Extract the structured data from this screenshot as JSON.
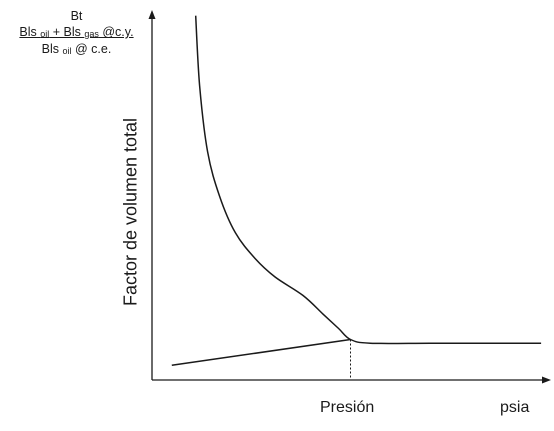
{
  "colors": {
    "line": "#1a1a1a",
    "axis": "#1a1a1a",
    "background": "#ffffff"
  },
  "units": {
    "title": "Bt",
    "numerator": {
      "a": "Bls ",
      "a_sub": "oil",
      "b": " + Bls ",
      "b_sub": "gas",
      "c": " @c.y."
    },
    "denominator": {
      "a": "Bls ",
      "a_sub": "oil",
      "b": " @ c.e."
    }
  },
  "chart_data": {
    "type": "line",
    "title": "",
    "xlabel": "Presión",
    "x_unit": "psia",
    "ylabel": "Factor de volumen total",
    "grid": false,
    "legend": "none",
    "series": [
      {
        "name": "",
        "points": [
          [
            0.11,
            0.99
          ],
          [
            0.12,
            0.8
          ],
          [
            0.14,
            0.62
          ],
          [
            0.17,
            0.5
          ],
          [
            0.21,
            0.4
          ],
          [
            0.26,
            0.33
          ],
          [
            0.31,
            0.28
          ],
          [
            0.38,
            0.23
          ],
          [
            0.43,
            0.18
          ],
          [
            0.47,
            0.14
          ],
          [
            0.5,
            0.11
          ],
          [
            0.55,
            0.1
          ],
          [
            0.7,
            0.1
          ],
          [
            0.85,
            0.1
          ],
          [
            0.98,
            0.1
          ]
        ]
      },
      {
        "name": "",
        "points": [
          [
            0.05,
            0.04
          ],
          [
            0.5,
            0.11
          ]
        ]
      }
    ],
    "markers": [
      {
        "type": "vline",
        "x": 0.5,
        "y_from": 0,
        "y_to": 0.11,
        "style": "dashed"
      }
    ]
  }
}
